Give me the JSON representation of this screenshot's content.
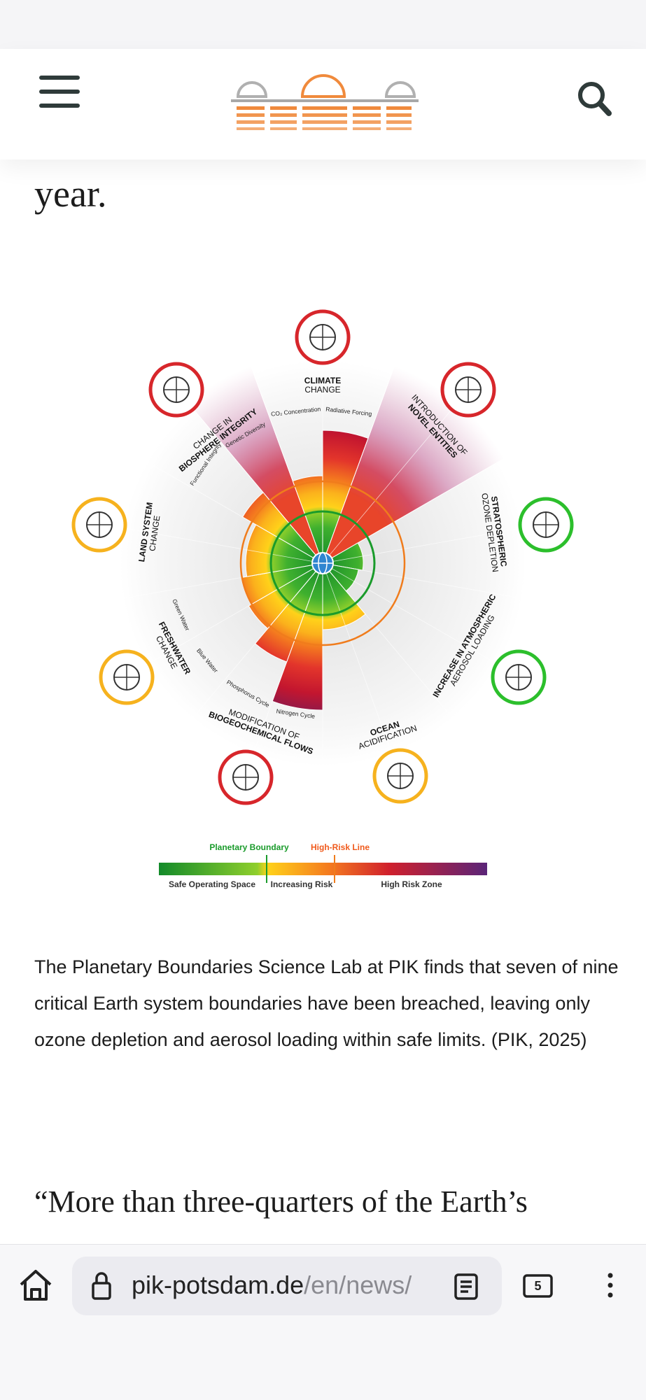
{
  "article": {
    "text_fragment": "year.",
    "figure": {
      "dimensions": [
        {
          "lines": [
            "CLIMATE",
            "CHANGE"
          ]
        },
        {
          "lines": [
            "INTRODUCTION OF",
            "NOVEL ENTITIES"
          ]
        },
        {
          "lines": [
            "STRATOSPHERIC",
            "OZONE DEPLETION"
          ]
        },
        {
          "lines": [
            "INCREASE IN ATMOSPHERIC",
            "AEROSOL LOADING"
          ]
        },
        {
          "lines": [
            "OCEAN",
            "ACIDIFICATION"
          ]
        },
        {
          "lines": [
            "MODIFICATION OF",
            "BIOGEOCHEMICAL FLOWS"
          ]
        },
        {
          "lines": [
            "FRESHWATER",
            "CHANGE"
          ]
        },
        {
          "lines": [
            "LAND SYSTEM",
            "CHANGE"
          ]
        },
        {
          "lines": [
            "CHANGE IN",
            "BIOSPHERE INTEGRITY"
          ]
        }
      ],
      "sub_labels": [
        "CO₂ Concentration",
        "Radiative Forcing",
        "Nitrogen Cycle",
        "Phosphorus Cycle",
        "Blue Water",
        "Green Water",
        "Functional Integrity",
        "Genetic Diversity"
      ],
      "legend": {
        "planetary_boundary": "Planetary Boundary",
        "high_risk_line": "High-Risk Line",
        "zones": [
          "Safe Operating Space",
          "Increasing Risk",
          "High Risk Zone"
        ]
      }
    },
    "caption": "The Planetary Boundaries Science Lab at PIK finds that seven of nine critical Earth system boundaries have been breached, leaving only ozone depletion and aerosol loading within safe limits. (PIK, 2025)",
    "quote_fragment": "“More than three-quarters of the Earth’s"
  },
  "browser": {
    "url_domain": "pik-potsdam.de",
    "url_path": "/en/news/",
    "tab_count": 5
  }
}
